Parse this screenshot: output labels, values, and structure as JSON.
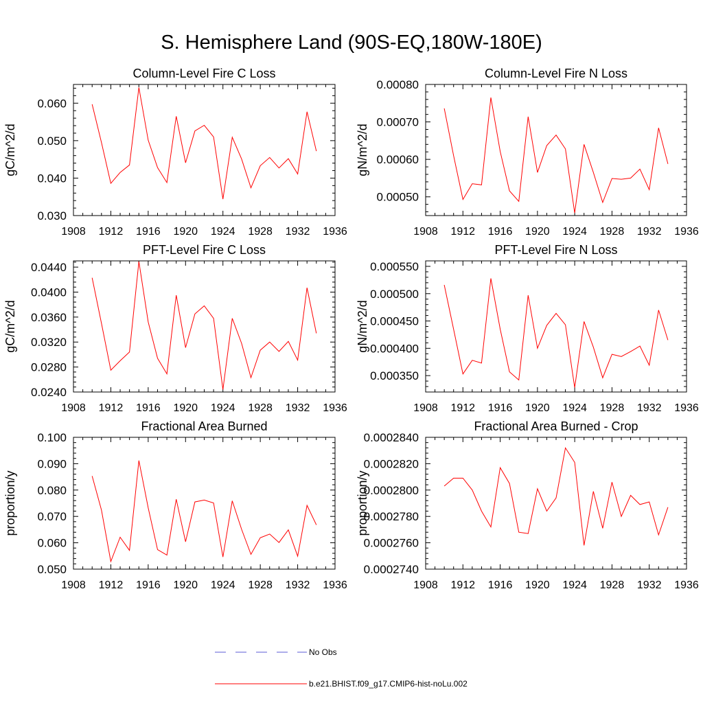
{
  "title": "S. Hemisphere Land (90S-EQ,180W-180E)",
  "legend": {
    "items": [
      {
        "label": "No Obs",
        "color": "#5b5bd6",
        "style": "dashed"
      },
      {
        "label": "b.e21.BHIST.f09_g17.CMIP6-hist-noLu.002",
        "color": "#ff0000",
        "style": "solid"
      }
    ]
  },
  "chart_data": [
    {
      "type": "line",
      "title": "Column-Level Fire C Loss",
      "ylabel": "gC/m^2/d",
      "xlim": [
        1908,
        1936
      ],
      "ylim": [
        0.03,
        0.065
      ],
      "xticks": [
        "1908",
        "1912",
        "1916",
        "1920",
        "1924",
        "1928",
        "1932",
        "1936"
      ],
      "yticks": [
        "0.030",
        "0.040",
        "0.050",
        "0.060"
      ],
      "series": [
        {
          "color": "#ff0000",
          "x": [
            1910,
            1911,
            1912,
            1913,
            1914,
            1915,
            1916,
            1917,
            1918,
            1919,
            1920,
            1921,
            1922,
            1923,
            1924,
            1925,
            1926,
            1927,
            1928,
            1929,
            1930,
            1931,
            1932,
            1933,
            1934
          ],
          "y": [
            0.0597,
            0.0495,
            0.0386,
            0.0415,
            0.0435,
            0.0642,
            0.0501,
            0.0428,
            0.0388,
            0.0565,
            0.0441,
            0.0526,
            0.0541,
            0.051,
            0.0344,
            0.0509,
            0.0451,
            0.0374,
            0.0433,
            0.0455,
            0.0427,
            0.0452,
            0.0411,
            0.0577,
            0.0472
          ]
        }
      ]
    },
    {
      "type": "line",
      "title": "Column-Level Fire N Loss",
      "ylabel": "gN/m^2/d",
      "xlim": [
        1908,
        1936
      ],
      "ylim": [
        0.00045,
        0.0008
      ],
      "xticks": [
        "1908",
        "1912",
        "1916",
        "1920",
        "1924",
        "1928",
        "1932",
        "1936"
      ],
      "yticks": [
        "0.00050",
        "0.00060",
        "0.00070",
        "0.00080"
      ],
      "series": [
        {
          "color": "#ff0000",
          "x": [
            1910,
            1911,
            1912,
            1913,
            1914,
            1915,
            1916,
            1917,
            1918,
            1919,
            1920,
            1921,
            1922,
            1923,
            1924,
            1925,
            1926,
            1927,
            1928,
            1929,
            1930,
            1931,
            1932,
            1933,
            1934
          ],
          "y": [
            0.000736,
            0.00061,
            0.000493,
            0.000535,
            0.000532,
            0.000765,
            0.000621,
            0.000516,
            0.000488,
            0.000714,
            0.000565,
            0.000637,
            0.000665,
            0.000628,
            0.000457,
            0.00064,
            0.000565,
            0.000485,
            0.000549,
            0.000547,
            0.00055,
            0.000574,
            0.000519,
            0.000684,
            0.000588
          ]
        }
      ]
    },
    {
      "type": "line",
      "title": "PFT-Level Fire C Loss",
      "ylabel": "gC/m^2/d",
      "xlim": [
        1908,
        1936
      ],
      "ylim": [
        0.024,
        0.045
      ],
      "xticks": [
        "1908",
        "1912",
        "1916",
        "1920",
        "1924",
        "1928",
        "1932",
        "1936"
      ],
      "yticks": [
        "0.0240",
        "0.0280",
        "0.0320",
        "0.0360",
        "0.0400",
        "0.0440"
      ],
      "series": [
        {
          "color": "#ff0000",
          "x": [
            1910,
            1911,
            1912,
            1913,
            1914,
            1915,
            1916,
            1917,
            1918,
            1919,
            1920,
            1921,
            1922,
            1923,
            1924,
            1925,
            1926,
            1927,
            1928,
            1929,
            1930,
            1931,
            1932,
            1933,
            1934
          ],
          "y": [
            0.0423,
            0.035,
            0.0275,
            0.029,
            0.0304,
            0.0449,
            0.0352,
            0.0294,
            0.0269,
            0.0395,
            0.0311,
            0.0365,
            0.0378,
            0.0358,
            0.0244,
            0.0358,
            0.0318,
            0.0263,
            0.0307,
            0.032,
            0.0305,
            0.0321,
            0.0291,
            0.0407,
            0.0334
          ]
        }
      ]
    },
    {
      "type": "line",
      "title": "PFT-Level Fire N Loss",
      "ylabel": "gN/m^2/d",
      "xlim": [
        1908,
        1936
      ],
      "ylim": [
        0.00032,
        0.00056
      ],
      "xticks": [
        "1908",
        "1912",
        "1916",
        "1920",
        "1924",
        "1928",
        "1932",
        "1936"
      ],
      "yticks": [
        "0.000350",
        "0.000400",
        "0.000450",
        "0.000500",
        "0.000550"
      ],
      "series": [
        {
          "color": "#ff0000",
          "x": [
            1910,
            1911,
            1912,
            1913,
            1914,
            1915,
            1916,
            1917,
            1918,
            1919,
            1920,
            1921,
            1922,
            1923,
            1924,
            1925,
            1926,
            1927,
            1928,
            1929,
            1930,
            1931,
            1932,
            1933,
            1934
          ],
          "y": [
            0.000516,
            0.000435,
            0.000353,
            0.000378,
            0.000373,
            0.000528,
            0.000435,
            0.000357,
            0.000342,
            0.000497,
            0.0004,
            0.000442,
            0.000464,
            0.000443,
            0.000328,
            0.000449,
            0.000402,
            0.000346,
            0.000389,
            0.000385,
            0.000394,
            0.000404,
            0.000369,
            0.00047,
            0.000415
          ]
        }
      ]
    },
    {
      "type": "line",
      "title": "Fractional Area Burned",
      "ylabel": "proportion/y",
      "xlim": [
        1908,
        1936
      ],
      "ylim": [
        0.05,
        0.1
      ],
      "xticks": [
        "1908",
        "1912",
        "1916",
        "1920",
        "1924",
        "1928",
        "1932",
        "1936"
      ],
      "yticks": [
        "0.050",
        "0.060",
        "0.070",
        "0.080",
        "0.090",
        "0.100"
      ],
      "series": [
        {
          "color": "#ff0000",
          "x": [
            1910,
            1911,
            1912,
            1913,
            1914,
            1915,
            1916,
            1917,
            1918,
            1919,
            1920,
            1921,
            1922,
            1923,
            1924,
            1925,
            1926,
            1927,
            1928,
            1929,
            1930,
            1931,
            1932,
            1933,
            1934
          ],
          "y": [
            0.0853,
            0.0724,
            0.0529,
            0.0621,
            0.0571,
            0.0912,
            0.0732,
            0.0574,
            0.0553,
            0.0765,
            0.0604,
            0.0755,
            0.0762,
            0.0751,
            0.0546,
            0.0759,
            0.0651,
            0.0556,
            0.0619,
            0.0633,
            0.0601,
            0.0649,
            0.0549,
            0.0742,
            0.0668
          ]
        }
      ]
    },
    {
      "type": "line",
      "title": "Fractional Area Burned - Crop",
      "ylabel": "proportion/y",
      "xlim": [
        1908,
        1936
      ],
      "ylim": [
        0.000274,
        0.000284
      ],
      "xticks": [
        "1908",
        "1912",
        "1916",
        "1920",
        "1924",
        "1928",
        "1932",
        "1936"
      ],
      "yticks": [
        "0.0002740",
        "0.0002760",
        "0.0002780",
        "0.0002800",
        "0.0002820",
        "0.0002840"
      ],
      "series": [
        {
          "color": "#ff0000",
          "x": [
            1910,
            1911,
            1912,
            1913,
            1914,
            1915,
            1916,
            1917,
            1918,
            1919,
            1920,
            1921,
            1922,
            1923,
            1924,
            1925,
            1926,
            1927,
            1928,
            1929,
            1930,
            1931,
            1932,
            1933,
            1934
          ],
          "y": [
            0.0002803,
            0.0002809,
            0.0002809,
            0.00028,
            0.0002784,
            0.0002772,
            0.0002817,
            0.0002805,
            0.0002768,
            0.0002767,
            0.0002801,
            0.0002784,
            0.0002794,
            0.0002832,
            0.0002821,
            0.0002758,
            0.0002799,
            0.0002771,
            0.0002806,
            0.000278,
            0.0002796,
            0.0002789,
            0.0002791,
            0.0002766,
            0.0002787
          ]
        }
      ]
    }
  ]
}
